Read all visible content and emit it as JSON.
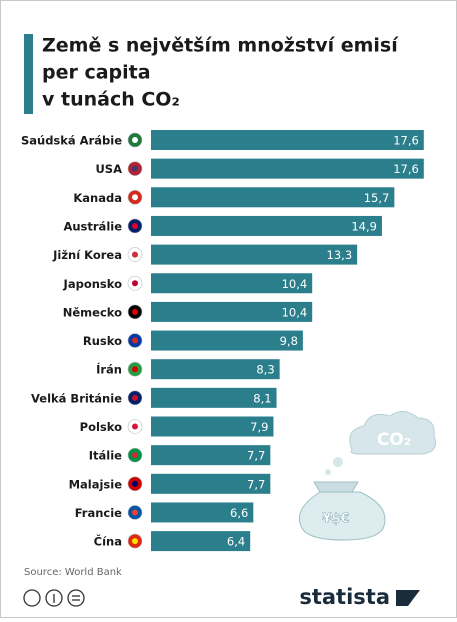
{
  "chart_data": {
    "type": "bar",
    "orientation": "horizontal",
    "title_lines": [
      "Země s největším množství emisí",
      "per capita",
      "v tunách CO₂"
    ],
    "categories": [
      "Saúdská Arábie",
      "USA",
      "Kanada",
      "Austrálie",
      "Jižní Korea",
      "Japonsko",
      "Německo",
      "Rusko",
      "Írán",
      "Velká Británie",
      "Polsko",
      "Itálie",
      "Malajsie",
      "Francie",
      "Čína"
    ],
    "values": [
      17.6,
      17.6,
      15.7,
      14.9,
      13.3,
      10.4,
      10.4,
      9.8,
      8.3,
      8.1,
      7.9,
      7.7,
      7.7,
      6.6,
      6.4
    ],
    "value_labels": [
      "17,6",
      "17,6",
      "15,7",
      "14,9",
      "13,3",
      "10,4",
      "10,4",
      "9,8",
      "8,3",
      "8,1",
      "7,9",
      "7,7",
      "7,7",
      "6,6",
      "6,4"
    ],
    "color": "#2b7f8c",
    "annotations": [
      "CO₂",
      "¥$€"
    ],
    "source": "Source: World Bank",
    "brand": "statista"
  }
}
